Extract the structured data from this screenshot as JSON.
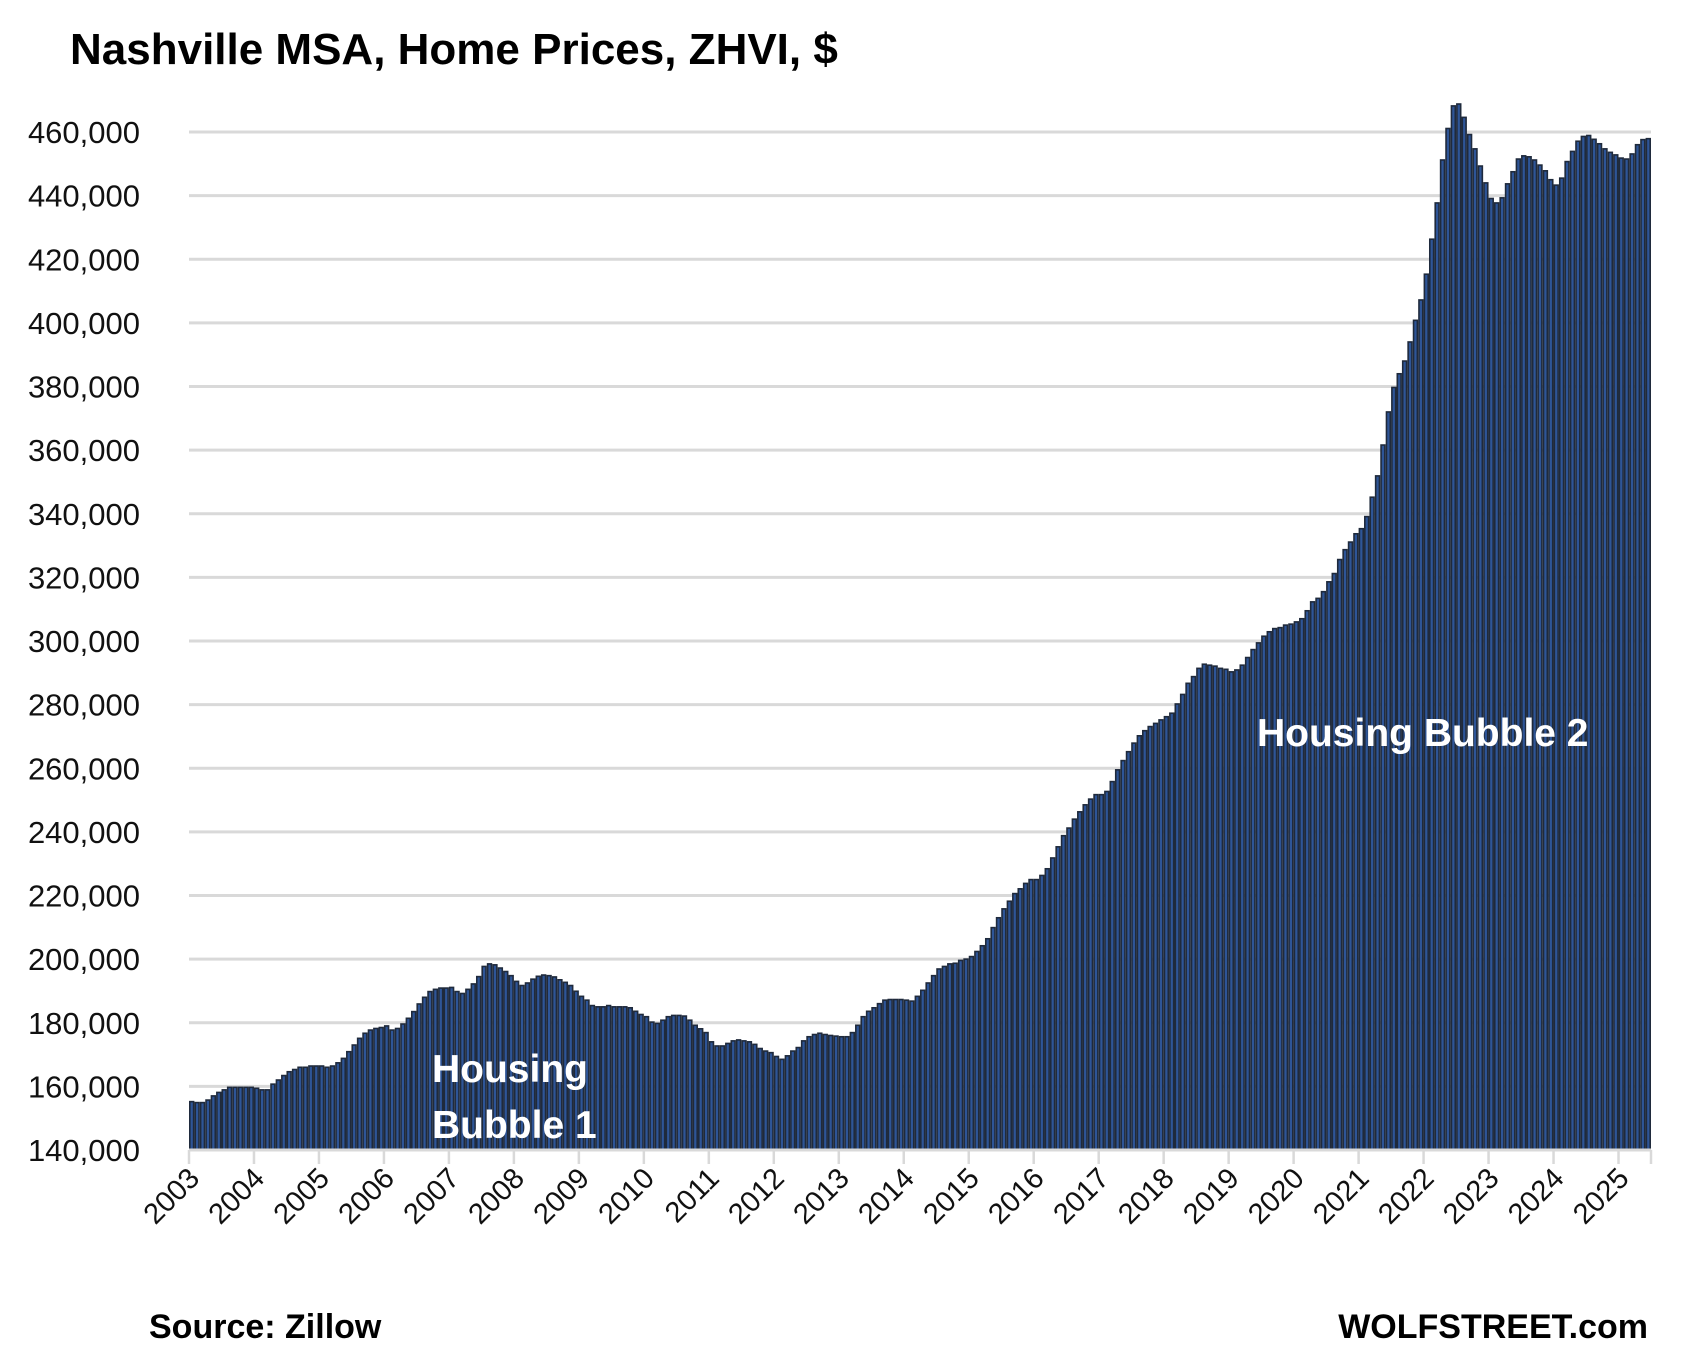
{
  "chart_data": {
    "type": "bar",
    "title": "Nashville MSA, Home Prices, ZHVI, $",
    "xlabel": "",
    "ylabel": "",
    "frequency": "monthly",
    "start": "2003-01",
    "end": "2025-06",
    "unit_multiplier": 1000,
    "ylim": [
      140000,
      460000
    ],
    "grid": true,
    "y_ticks": [
      140000,
      160000,
      180000,
      200000,
      220000,
      240000,
      260000,
      280000,
      300000,
      320000,
      340000,
      360000,
      380000,
      400000,
      420000,
      440000,
      460000
    ],
    "y_tick_labels": [
      "140,000",
      "160,000",
      "180,000",
      "200,000",
      "220,000",
      "240,000",
      "260,000",
      "280,000",
      "300,000",
      "320,000",
      "340,000",
      "360,000",
      "380,000",
      "400,000",
      "420,000",
      "440,000",
      "460,000"
    ],
    "x_tick_labels": [
      "2003",
      "2004",
      "2005",
      "2006",
      "2007",
      "2008",
      "2009",
      "2010",
      "2011",
      "2012",
      "2013",
      "2014",
      "2015",
      "2016",
      "2017",
      "2018",
      "2019",
      "2020",
      "2021",
      "2022",
      "2023",
      "2024",
      "2025"
    ],
    "series": [
      {
        "name": "Home Prices, ZHVI ($ thousands)",
        "color": "#2E5597",
        "values": [
          155.2,
          154.9,
          154.9,
          155.7,
          157,
          158.1,
          158.9,
          159.7,
          159.7,
          159.7,
          159.7,
          159.7,
          159.4,
          158.9,
          158.9,
          160.7,
          162,
          163.4,
          164.6,
          165.3,
          166,
          166,
          166.4,
          166.4,
          166.4,
          166,
          166.4,
          167.4,
          168.8,
          170.9,
          173,
          175.1,
          176.7,
          177.7,
          178.2,
          178.5,
          179,
          177.7,
          178.2,
          179.6,
          181.4,
          183.5,
          185.9,
          188,
          189.8,
          190.5,
          190.9,
          190.9,
          191.1,
          189.8,
          189.2,
          190.5,
          192.2,
          194.5,
          197.7,
          198.5,
          198.2,
          197.2,
          196.1,
          194.8,
          193,
          191.7,
          192.5,
          193.7,
          194.6,
          195,
          194.8,
          194.4,
          193.5,
          192.7,
          191.7,
          189.9,
          188.3,
          187.1,
          185.4,
          185,
          185,
          185.4,
          185,
          185,
          185,
          184.7,
          183.6,
          182.6,
          181.9,
          180.2,
          179.8,
          180.8,
          181.9,
          182.3,
          182.3,
          182.1,
          180.8,
          179.2,
          178.1,
          176.9,
          174,
          172.7,
          172.7,
          173.5,
          174.3,
          174.6,
          174.3,
          174,
          173.2,
          171.9,
          171.1,
          170.6,
          169.4,
          168.5,
          169.6,
          171.1,
          172.2,
          174.3,
          175.6,
          176.3,
          176.7,
          176.3,
          176,
          175.8,
          175.6,
          175.6,
          176.9,
          179.2,
          181.9,
          183.6,
          184.7,
          186,
          187.1,
          187.3,
          187.3,
          187.3,
          187.1,
          186.8,
          188.3,
          190.2,
          192.5,
          194.8,
          196.9,
          197.7,
          198.5,
          198.7,
          199.6,
          200,
          200.8,
          202.4,
          204.2,
          206.4,
          209.9,
          213,
          215.8,
          218.2,
          220.6,
          222.1,
          223.8,
          225,
          225,
          226.3,
          228.4,
          231.8,
          235.3,
          238.8,
          241.2,
          244,
          246.3,
          248.5,
          250.3,
          251.7,
          251.7,
          252.7,
          255.8,
          259.5,
          262.4,
          265.2,
          267.9,
          270.2,
          271.8,
          273.1,
          274.1,
          275.2,
          276.2,
          277.3,
          280.2,
          283.2,
          286.7,
          288.8,
          291.4,
          292.7,
          292.4,
          292.1,
          291.4,
          291.1,
          290.3,
          290.9,
          292.4,
          294.8,
          297.3,
          299.4,
          301.5,
          302.9,
          303.9,
          304.2,
          305,
          305.3,
          306,
          307,
          309.5,
          312.3,
          313.4,
          315.5,
          318.6,
          321.2,
          325.6,
          328.7,
          331.1,
          333.7,
          335.3,
          339.1,
          345.2,
          351.9,
          361.6,
          372,
          379.7,
          384,
          388,
          394,
          400.8,
          407.2,
          415.3,
          426.3,
          437.7,
          451.2,
          461.1,
          468.2,
          468.8,
          464.6,
          459.2,
          454.7,
          449.3,
          444,
          439.1,
          437.7,
          439.3,
          443.7,
          447.5,
          451.5,
          452.5,
          452.2,
          451.2,
          449.6,
          447.8,
          445,
          443.3,
          445.5,
          450.7,
          453.9,
          457.1,
          458.6,
          458.9,
          457.7,
          456.3,
          454.7,
          453.6,
          452.8,
          451.8,
          451.5,
          453.1,
          456,
          457.6,
          457.9
        ]
      }
    ],
    "annotations": {
      "bubble1_line1": "Housing",
      "bubble1_line2": "Bubble 1",
      "bubble2": "Housing Bubble 2"
    },
    "source": "Source: Zillow",
    "credit": "WOLFSTREET.com"
  }
}
